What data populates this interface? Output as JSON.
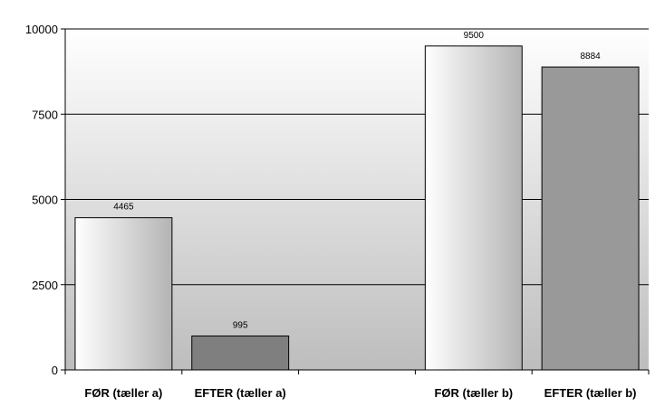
{
  "chart_data": {
    "type": "bar",
    "categories": [
      "FØR (tæller a)",
      "EFTER (tæller a)",
      "",
      "FØR (tæller b)",
      "EFTER (tæller b)"
    ],
    "values": [
      4465,
      995,
      null,
      9500,
      8884
    ],
    "value_labels": [
      "4465",
      "995",
      "",
      "9500",
      "8884"
    ],
    "bar_styles": [
      "light-gradient",
      "dark-gray",
      "none",
      "light-gradient",
      "medium-gray"
    ],
    "yticks": [
      0,
      2500,
      5000,
      7500,
      10000
    ],
    "ytick_labels": [
      "0",
      "2500",
      "5000",
      "7500",
      "10000"
    ],
    "ylim": [
      0,
      10000
    ],
    "grid": true,
    "title": "",
    "xlabel": "",
    "ylabel": "",
    "colors": {
      "bar_light_start": "#ffffff",
      "bar_light_end": "#b4b4b4",
      "bar_dark": "#7f7f7f",
      "bar_medium": "#999999",
      "plot_gradient_top": "#ffffff",
      "plot_gradient_bottom": "#bdbdbd",
      "gridline": "#000000"
    }
  }
}
